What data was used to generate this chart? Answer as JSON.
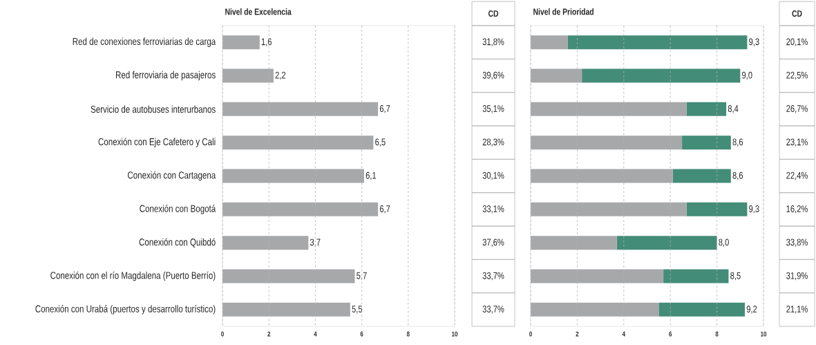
{
  "chart_data": [
    {
      "type": "bar",
      "orientation": "horizontal",
      "title": "Nivel de Excelencia",
      "categories": [
        "Red de conexiones ferroviarias de carga",
        "Red ferroviaria de pasajeros",
        "Servicio de autobuses interurbanos",
        "Conexión con Eje Cafetero y Cali",
        "Conexión con Cartagena",
        "Conexión con Bogotá",
        "Conexión con Quibdó",
        "Conexión con el río Magdalena (Puerto Berrío)",
        "Conexión con Urabá (puertos y desarrollo turístico)"
      ],
      "values": [
        1.6,
        2.2,
        6.7,
        6.5,
        6.1,
        6.7,
        3.7,
        5.7,
        5.5
      ],
      "value_labels": [
        "1,6",
        "2,2",
        "6,7",
        "6,5",
        "6,1",
        "6,7",
        "3,7",
        "5,7",
        "5,5"
      ],
      "color": "#a7a8aa",
      "xlim": [
        0,
        10
      ],
      "xticks": [
        0,
        2,
        4,
        6,
        8,
        10
      ],
      "grid": "x"
    },
    {
      "type": "other",
      "title": "CD",
      "values": [
        31.8,
        39.6,
        35.1,
        28.3,
        30.1,
        33.1,
        37.6,
        33.7,
        33.7
      ],
      "value_labels": [
        "31,8%",
        "39,6%",
        "35,1%",
        "28,3%",
        "30,1%",
        "33,1%",
        "37,6%",
        "33,7%",
        "33,7%"
      ]
    },
    {
      "type": "bar",
      "orientation": "horizontal",
      "stacked": true,
      "title": "Nivel de Prioridad",
      "categories": [
        null,
        null,
        null,
        null,
        null,
        null,
        null,
        null,
        null
      ],
      "tick_labels": "x",
      "series": [
        {
          "color": "#a7a8aa",
          "values": [
            1.6,
            2.2,
            6.7,
            6.5,
            6.1,
            6.7,
            3.7,
            5.7,
            5.5
          ]
        },
        {
          "color": "#438c78",
          "values": [
            7.7,
            6.8,
            1.7,
            2.1,
            2.5,
            2.6,
            4.3,
            2.8,
            3.7
          ]
        }
      ],
      "totals": [
        "9,3",
        "9,0",
        "8,4",
        "8,6",
        "8,6",
        "9,3",
        "8,0",
        "8,5",
        "9,2"
      ],
      "xlim": [
        0,
        10
      ],
      "xticks": [
        0,
        2,
        4,
        6,
        8,
        10
      ],
      "grid": "x"
    },
    {
      "type": "other",
      "title": "CD",
      "values": [
        20.1,
        22.5,
        26.7,
        23.1,
        22.4,
        16.2,
        33.8,
        31.9,
        21.1
      ],
      "value_labels": [
        "20,1%",
        "22,5%",
        "26,7%",
        "23,1%",
        "22,4%",
        "16,2%",
        "33,8%",
        "31,9%",
        "21,1%"
      ]
    }
  ]
}
